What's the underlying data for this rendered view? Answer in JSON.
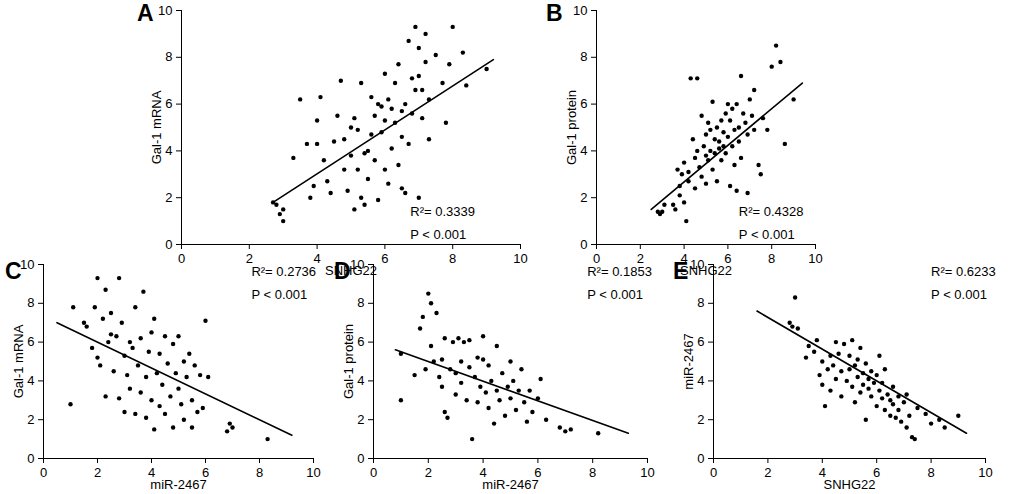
{
  "chart_data": [
    {
      "type": "scatter",
      "panel": "A",
      "x_label": "SNHG22",
      "y_label": "Gal-1 mRNA",
      "xlim": [
        0,
        10
      ],
      "ylim": [
        0,
        10
      ],
      "xticks": [
        0,
        2,
        4,
        6,
        8,
        10
      ],
      "yticks": [
        0,
        2,
        4,
        6,
        8,
        10
      ],
      "grid": false,
      "color": "#000000",
      "marker": "circle",
      "x": [
        2.8,
        2.9,
        3.0,
        3.0,
        2.7,
        3.3,
        3.5,
        3.7,
        3.8,
        3.9,
        4.0,
        4.0,
        4.1,
        4.2,
        4.3,
        4.4,
        4.5,
        4.6,
        4.7,
        4.8,
        4.8,
        4.9,
        5.0,
        5.0,
        5.1,
        5.1,
        5.2,
        5.2,
        5.3,
        5.3,
        5.4,
        5.4,
        5.5,
        5.5,
        5.6,
        5.6,
        5.7,
        5.7,
        5.8,
        5.8,
        5.9,
        5.9,
        6.0,
        6.0,
        6.0,
        6.1,
        6.1,
        6.2,
        6.2,
        6.3,
        6.3,
        6.4,
        6.4,
        6.5,
        6.5,
        6.5,
        6.6,
        6.6,
        6.7,
        6.7,
        6.8,
        6.8,
        6.9,
        6.9,
        7.0,
        7.0,
        7.0,
        7.1,
        7.1,
        7.2,
        7.2,
        7.3,
        7.3,
        7.5,
        7.7,
        7.8,
        7.9,
        8.0,
        8.3,
        8.4,
        9.0
      ],
      "values": [
        1.7,
        1.3,
        1.0,
        1.5,
        1.8,
        3.7,
        6.2,
        4.3,
        2.0,
        2.5,
        4.3,
        5.3,
        6.3,
        3.6,
        2.7,
        2.2,
        4.4,
        5.5,
        7.0,
        3.2,
        4.5,
        2.3,
        3.8,
        5.0,
        1.5,
        5.4,
        3.2,
        4.9,
        6.9,
        2.0,
        1.7,
        3.9,
        4.0,
        2.8,
        6.3,
        4.7,
        5.5,
        3.6,
        6.0,
        1.9,
        4.8,
        5.9,
        5.3,
        7.3,
        3.2,
        2.6,
        6.2,
        5.8,
        4.1,
        5.2,
        6.9,
        3.4,
        7.7,
        2.4,
        4.6,
        5.7,
        2.2,
        6.0,
        8.7,
        4.3,
        5.6,
        7.1,
        9.3,
        6.6,
        2.0,
        7.2,
        8.4,
        5.4,
        6.6,
        9.0,
        7.8,
        4.5,
        6.2,
        8.1,
        6.9,
        5.2,
        7.7,
        9.3,
        8.2,
        6.8,
        7.5
      ],
      "trend_line": {
        "x": [
          2.7,
          9.2
        ],
        "values": [
          1.8,
          7.9
        ],
        "line_style": "solid"
      },
      "annotations": [
        "R²= 0.3339",
        "P < 0.001"
      ]
    },
    {
      "type": "scatter",
      "panel": "B",
      "x_label": "SNHG22",
      "y_label": "Gal-1 protein",
      "xlim": [
        0,
        10
      ],
      "ylim": [
        0,
        10
      ],
      "xticks": [
        0,
        2,
        4,
        6,
        8,
        10
      ],
      "yticks": [
        0,
        2,
        4,
        6,
        8,
        10
      ],
      "grid": false,
      "color": "#000000",
      "marker": "circle",
      "x": [
        2.8,
        2.9,
        3.0,
        3.1,
        3.5,
        3.6,
        3.7,
        3.8,
        3.8,
        3.9,
        4.0,
        4.0,
        4.1,
        4.2,
        4.2,
        4.3,
        4.4,
        4.5,
        4.5,
        4.6,
        4.6,
        4.7,
        4.8,
        4.8,
        4.9,
        5.0,
        5.0,
        5.0,
        5.1,
        5.1,
        5.2,
        5.2,
        5.3,
        5.3,
        5.4,
        5.4,
        5.5,
        5.5,
        5.6,
        5.6,
        5.7,
        5.7,
        5.8,
        5.8,
        5.9,
        5.9,
        6.0,
        6.0,
        6.1,
        6.1,
        6.2,
        6.2,
        6.3,
        6.3,
        6.4,
        6.4,
        6.5,
        6.5,
        6.6,
        6.6,
        6.7,
        6.8,
        6.9,
        6.9,
        7.0,
        7.1,
        7.2,
        7.2,
        7.4,
        7.5,
        7.6,
        7.8,
        8.0,
        8.2,
        8.4,
        8.6,
        9.0
      ],
      "values": [
        1.4,
        1.3,
        1.4,
        1.7,
        1.7,
        1.5,
        3.2,
        2.1,
        2.5,
        3.0,
        1.8,
        3.5,
        1.0,
        2.7,
        3.1,
        7.1,
        4.5,
        3.7,
        2.4,
        7.1,
        4.0,
        3.3,
        2.9,
        5.5,
        4.2,
        3.8,
        4.7,
        2.6,
        3.6,
        5.2,
        4.0,
        4.9,
        3.2,
        6.1,
        3.9,
        4.5,
        5.0,
        2.7,
        4.1,
        4.4,
        3.6,
        5.3,
        4.8,
        4.2,
        5.6,
        3.9,
        4.6,
        6.0,
        2.5,
        5.3,
        4.2,
        5.8,
        4.9,
        3.4,
        6.0,
        2.3,
        4.4,
        5.0,
        7.2,
        3.7,
        5.6,
        5.2,
        4.7,
        2.2,
        6.2,
        5.5,
        6.6,
        4.9,
        3.4,
        3.0,
        5.4,
        4.9,
        7.6,
        8.5,
        7.8,
        4.3,
        6.2
      ],
      "trend_line": {
        "x": [
          2.5,
          9.4
        ],
        "values": [
          1.5,
          6.9
        ],
        "line_style": "solid"
      },
      "annotations": [
        "R²= 0.4328",
        "P < 0.001"
      ]
    },
    {
      "type": "scatter",
      "panel": "C",
      "x_label": "miR-2467",
      "y_label": "Gal-1 mRNA",
      "xlim": [
        0,
        10
      ],
      "ylim": [
        0,
        10
      ],
      "xticks": [
        0,
        2,
        4,
        6,
        8,
        10
      ],
      "yticks": [
        0,
        2,
        4,
        6,
        8,
        10
      ],
      "grid": false,
      "color": "#000000",
      "marker": "circle",
      "x": [
        1.0,
        1.1,
        1.5,
        1.6,
        1.8,
        1.9,
        2.0,
        2.0,
        2.1,
        2.2,
        2.3,
        2.3,
        2.4,
        2.5,
        2.5,
        2.6,
        2.7,
        2.8,
        2.8,
        2.9,
        3.0,
        3.0,
        3.1,
        3.2,
        3.2,
        3.3,
        3.4,
        3.4,
        3.5,
        3.6,
        3.6,
        3.7,
        3.8,
        3.8,
        3.9,
        4.0,
        4.0,
        4.1,
        4.1,
        4.2,
        4.3,
        4.3,
        4.4,
        4.5,
        4.5,
        4.6,
        4.7,
        4.8,
        4.8,
        4.9,
        5.0,
        5.0,
        5.1,
        5.2,
        5.2,
        5.3,
        5.4,
        5.5,
        5.5,
        5.6,
        5.7,
        5.8,
        5.9,
        6.0,
        6.1,
        6.8,
        6.9,
        7.0,
        8.3
      ],
      "values": [
        2.8,
        7.8,
        7.0,
        6.8,
        5.7,
        7.8,
        5.2,
        9.3,
        4.8,
        7.2,
        8.7,
        3.2,
        6.0,
        6.4,
        7.5,
        4.5,
        6.3,
        9.3,
        3.1,
        7.0,
        5.3,
        2.4,
        4.3,
        6.0,
        3.6,
        5.7,
        7.8,
        2.3,
        4.8,
        6.2,
        3.4,
        8.6,
        4.2,
        2.1,
        5.5,
        6.5,
        3.0,
        7.2,
        1.5,
        4.4,
        5.4,
        2.7,
        3.8,
        6.3,
        2.3,
        4.9,
        3.2,
        5.9,
        1.6,
        4.4,
        3.6,
        6.3,
        2.8,
        5.0,
        2.0,
        4.2,
        5.4,
        3.0,
        1.6,
        4.8,
        2.4,
        4.3,
        2.6,
        7.1,
        4.2,
        1.4,
        1.8,
        1.6,
        1.0
      ],
      "trend_line": {
        "x": [
          0.5,
          9.2
        ],
        "values": [
          7.0,
          1.2
        ],
        "line_style": "solid"
      },
      "annotations": [
        "R²= 0.2736",
        "P < 0.001"
      ]
    },
    {
      "type": "scatter",
      "panel": "D",
      "x_label": "miR-2467",
      "y_label": "Gal-1 protein",
      "xlim": [
        0,
        10
      ],
      "ylim": [
        0,
        10
      ],
      "xticks": [
        0,
        2,
        4,
        6,
        8,
        10
      ],
      "yticks": [
        0,
        2,
        4,
        6,
        8,
        10
      ],
      "grid": false,
      "color": "#000000",
      "marker": "circle",
      "x": [
        1.0,
        1.0,
        1.5,
        1.7,
        1.8,
        1.9,
        2.0,
        2.1,
        2.1,
        2.2,
        2.3,
        2.4,
        2.5,
        2.5,
        2.6,
        2.6,
        2.7,
        2.8,
        2.9,
        3.0,
        3.0,
        3.1,
        3.2,
        3.2,
        3.3,
        3.4,
        3.5,
        3.5,
        3.6,
        3.7,
        3.8,
        3.8,
        3.9,
        4.0,
        4.0,
        4.1,
        4.2,
        4.2,
        4.3,
        4.4,
        4.5,
        4.5,
        4.6,
        4.7,
        4.8,
        4.9,
        5.0,
        5.0,
        5.1,
        5.2,
        5.3,
        5.4,
        5.5,
        5.6,
        5.7,
        5.8,
        6.0,
        6.1,
        6.3,
        6.8,
        7.0,
        7.2,
        8.2
      ],
      "values": [
        5.4,
        3.0,
        4.3,
        6.7,
        7.3,
        4.6,
        8.5,
        5.8,
        8.0,
        5.0,
        7.5,
        4.2,
        5.1,
        3.7,
        2.4,
        6.2,
        2.1,
        4.6,
        6.0,
        4.4,
        3.3,
        6.2,
        5.0,
        3.9,
        6.0,
        3.0,
        4.7,
        6.1,
        1.0,
        4.2,
        5.2,
        2.9,
        3.7,
        5.1,
        6.3,
        3.4,
        4.8,
        2.6,
        4.0,
        1.8,
        3.5,
        5.8,
        3.0,
        4.4,
        2.2,
        3.7,
        5.0,
        3.1,
        4.0,
        2.5,
        3.5,
        4.6,
        2.9,
        1.9,
        3.5,
        2.4,
        3.1,
        4.1,
        2.0,
        1.6,
        1.4,
        1.5,
        1.3
      ],
      "trend_line": {
        "x": [
          0.8,
          9.3
        ],
        "values": [
          5.6,
          1.3
        ],
        "line_style": "solid"
      },
      "annotations": [
        "R²= 0.1853",
        "P < 0.001"
      ]
    },
    {
      "type": "scatter",
      "panel": "E",
      "x_label": "SNHG22",
      "y_label": "miR-2467",
      "xlim": [
        0,
        10
      ],
      "ylim": [
        0,
        10
      ],
      "xticks": [
        0,
        2,
        4,
        6,
        8,
        10
      ],
      "yticks": [
        0,
        2,
        4,
        6,
        8,
        10
      ],
      "grid": false,
      "color": "#000000",
      "marker": "circle",
      "x": [
        2.8,
        2.9,
        3.0,
        3.1,
        3.4,
        3.5,
        3.7,
        3.8,
        3.9,
        4.0,
        4.0,
        4.1,
        4.2,
        4.3,
        4.3,
        4.4,
        4.5,
        4.5,
        4.6,
        4.7,
        4.7,
        4.8,
        4.9,
        5.0,
        5.0,
        5.1,
        5.1,
        5.2,
        5.2,
        5.3,
        5.3,
        5.4,
        5.4,
        5.5,
        5.5,
        5.6,
        5.6,
        5.7,
        5.7,
        5.8,
        5.8,
        5.9,
        6.0,
        6.0,
        6.1,
        6.1,
        6.2,
        6.2,
        6.3,
        6.3,
        6.4,
        6.5,
        6.5,
        6.6,
        6.6,
        6.7,
        6.8,
        6.8,
        6.9,
        7.0,
        7.1,
        7.1,
        7.2,
        7.3,
        7.4,
        7.5,
        7.8,
        8.0,
        8.3,
        8.5,
        9.0
      ],
      "values": [
        7.0,
        6.8,
        8.3,
        6.7,
        5.2,
        5.8,
        5.5,
        6.1,
        4.3,
        5.0,
        3.8,
        2.7,
        4.6,
        5.3,
        3.5,
        4.8,
        6.0,
        4.1,
        5.4,
        4.5,
        3.2,
        5.9,
        4.0,
        5.3,
        4.6,
        6.1,
        3.7,
        4.8,
        2.9,
        5.1,
        4.2,
        3.4,
        5.7,
        4.4,
        3.8,
        4.9,
        2.0,
        3.6,
        4.1,
        4.5,
        3.2,
        3.9,
        2.7,
        4.3,
        3.5,
        5.3,
        3.1,
        3.9,
        2.5,
        4.6,
        3.3,
        2.2,
        3.0,
        2.8,
        3.7,
        2.1,
        3.2,
        2.5,
        1.9,
        2.9,
        1.6,
        3.3,
        2.2,
        1.1,
        1.0,
        2.6,
        2.3,
        1.8,
        2.0,
        1.6,
        2.2
      ],
      "trend_line": {
        "x": [
          1.6,
          9.3
        ],
        "values": [
          7.6,
          1.3
        ],
        "line_style": "solid"
      },
      "annotations": [
        "R²= 0.6233",
        "P < 0.001"
      ]
    }
  ]
}
